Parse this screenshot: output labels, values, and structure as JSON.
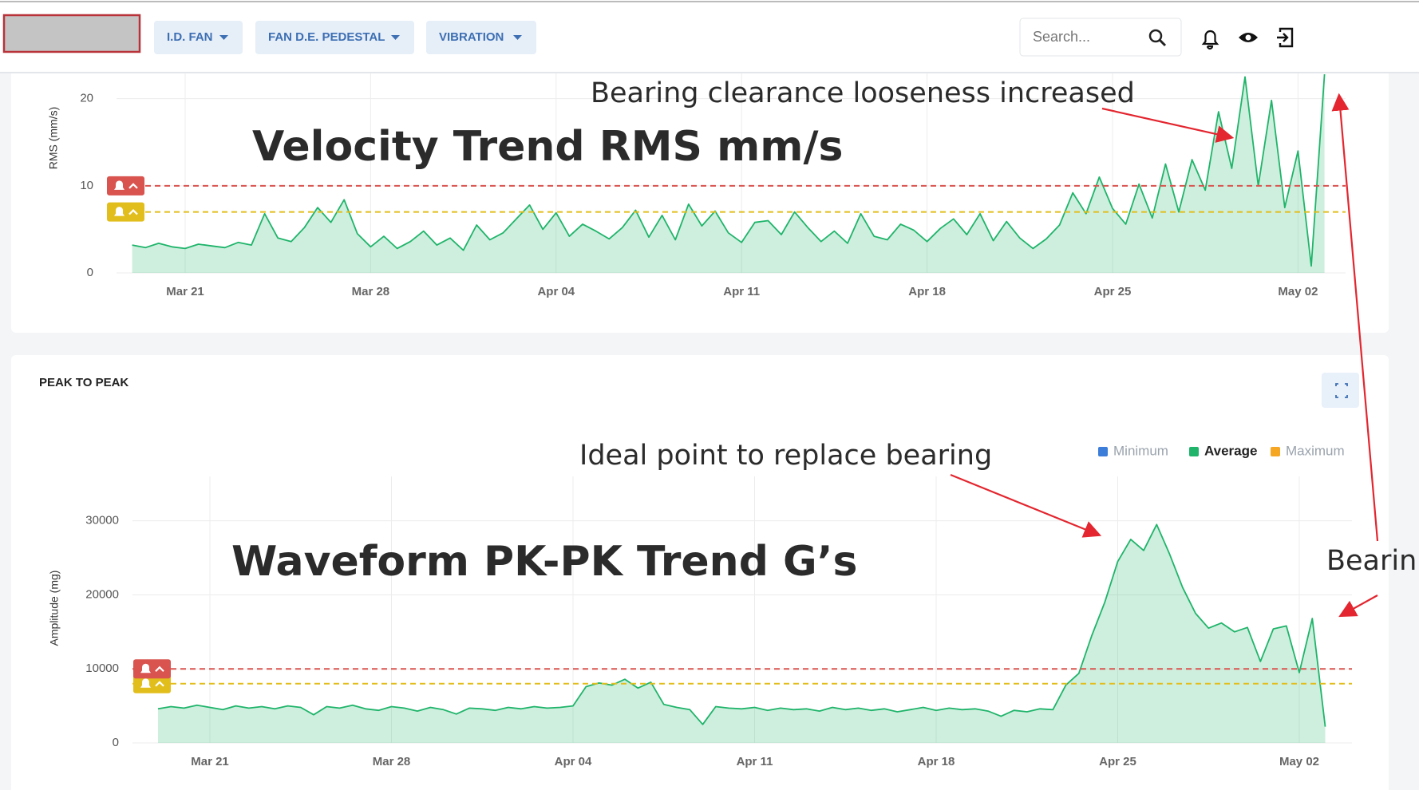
{
  "header": {
    "nav": [
      "I.D. FAN",
      "FAN D.E. PEDESTAL",
      "VIBRATION"
    ],
    "search": "Search..."
  },
  "chart_data": [
    {
      "type": "area",
      "y_label": "RMS (mm/s)",
      "color": "#1fb46a",
      "annotations": [
        "Velocity Trend RMS mm/s",
        "Bearing clearance looseness increased"
      ],
      "categories": [
        null,
        null,
        null,
        null,
        "Mar 21",
        null,
        null,
        null,
        null,
        null,
        null,
        null,
        null,
        null,
        null,
        null,
        null,
        null,
        "Mar 28",
        null,
        null,
        null,
        null,
        null,
        null,
        null,
        null,
        null,
        null,
        null,
        null,
        null,
        "Apr 04",
        null,
        null,
        null,
        null,
        null,
        null,
        null,
        null,
        null,
        null,
        null,
        null,
        null,
        "Apr 11",
        null,
        null,
        null,
        null,
        null,
        null,
        null,
        null,
        null,
        null,
        null,
        null,
        null,
        "Apr 18",
        null,
        null,
        null,
        null,
        null,
        null,
        null,
        null,
        null,
        null,
        null,
        null,
        null,
        "Apr 25",
        null,
        null,
        null,
        null,
        null,
        null,
        null,
        null,
        null,
        null,
        null,
        null,
        null,
        "May 02",
        null,
        null
      ],
      "values": [
        3.2,
        2.9,
        3.4,
        3.0,
        2.8,
        3.3,
        3.1,
        2.9,
        3.5,
        3.2,
        6.8,
        4.0,
        3.6,
        5.2,
        7.5,
        5.8,
        8.4,
        4.5,
        3.0,
        4.2,
        2.8,
        3.6,
        4.8,
        3.2,
        4.0,
        2.6,
        5.5,
        3.8,
        4.6,
        6.2,
        7.8,
        5.0,
        6.9,
        4.2,
        5.6,
        4.8,
        3.9,
        5.2,
        7.2,
        4.1,
        6.6,
        3.8,
        7.9,
        5.4,
        7.1,
        4.6,
        3.5,
        5.8,
        6.0,
        4.4,
        7.0,
        5.2,
        3.6,
        4.8,
        3.4,
        6.8,
        4.2,
        3.8,
        5.6,
        4.9,
        3.6,
        5.1,
        6.2,
        4.4,
        6.8,
        3.7,
        5.9,
        4.0,
        2.8,
        3.9,
        5.5,
        9.2,
        6.8,
        11.0,
        7.4,
        5.6,
        10.2,
        6.3,
        12.5,
        7.0,
        13.0,
        9.5,
        18.5,
        12.0,
        22.5,
        10.0,
        19.8,
        7.5,
        14.0,
        0.8,
        22.8
      ],
      "ylim": [
        0,
        24
      ],
      "yticks": [
        0,
        10,
        20
      ],
      "grid": true,
      "thresholds": [
        {
          "value": 10,
          "color": "#d9534f"
        },
        {
          "value": 7,
          "color": "#e2be1c"
        }
      ]
    },
    {
      "type": "area",
      "title": "PEAK TO PEAK",
      "y_label": "Amplitude (mg)",
      "annotations": [
        "Waveform PK-PK Trend G’s",
        "Ideal point to replace bearing",
        "Bearin"
      ],
      "categories": [
        null,
        null,
        null,
        null,
        "Mar 21",
        null,
        null,
        null,
        null,
        null,
        null,
        null,
        null,
        null,
        null,
        null,
        null,
        null,
        "Mar 28",
        null,
        null,
        null,
        null,
        null,
        null,
        null,
        null,
        null,
        null,
        null,
        null,
        null,
        "Apr 04",
        null,
        null,
        null,
        null,
        null,
        null,
        null,
        null,
        null,
        null,
        null,
        null,
        null,
        "Apr 11",
        null,
        null,
        null,
        null,
        null,
        null,
        null,
        null,
        null,
        null,
        null,
        null,
        null,
        "Apr 18",
        null,
        null,
        null,
        null,
        null,
        null,
        null,
        null,
        null,
        null,
        null,
        null,
        null,
        "Apr 25",
        null,
        null,
        null,
        null,
        null,
        null,
        null,
        null,
        null,
        null,
        null,
        null,
        null,
        "May 02",
        null,
        null
      ],
      "series": [
        {
          "name": "Minimum",
          "color": "#3b7dd8",
          "visible": false
        },
        {
          "name": "Average",
          "color": "#1fb46a",
          "visible": true,
          "values": [
            4600,
            4900,
            4700,
            5100,
            4800,
            4500,
            5000,
            4700,
            4900,
            4600,
            5000,
            4800,
            3800,
            4900,
            4700,
            5100,
            4600,
            4400,
            4900,
            4700,
            4300,
            4800,
            4500,
            3900,
            4700,
            4600,
            4400,
            4800,
            4600,
            4900,
            4700,
            4800,
            5000,
            7600,
            8100,
            7800,
            8600,
            7400,
            8200,
            5200,
            4800,
            4500,
            2500,
            4900,
            4700,
            4600,
            4800,
            4400,
            4700,
            4500,
            4600,
            4300,
            4800,
            4500,
            4700,
            4400,
            4600,
            4200,
            4500,
            4800,
            4400,
            4700,
            4500,
            4600,
            4300,
            3600,
            4400,
            4200,
            4600,
            4500,
            7800,
            9400,
            14500,
            19000,
            24500,
            27500,
            26000,
            29500,
            25500,
            21000,
            17500,
            15500,
            16200,
            15000,
            15600,
            11000,
            15400,
            15800,
            9500,
            16800,
            2200
          ]
        },
        {
          "name": "Maximum",
          "color": "#f5a623",
          "visible": false
        }
      ],
      "ylim": [
        0,
        36000
      ],
      "yticks": [
        0,
        10000,
        20000,
        30000
      ],
      "grid": true,
      "thresholds": [
        {
          "value": 10000,
          "color": "#d9534f"
        },
        {
          "value": 8000,
          "color": "#e2be1c"
        }
      ]
    }
  ]
}
